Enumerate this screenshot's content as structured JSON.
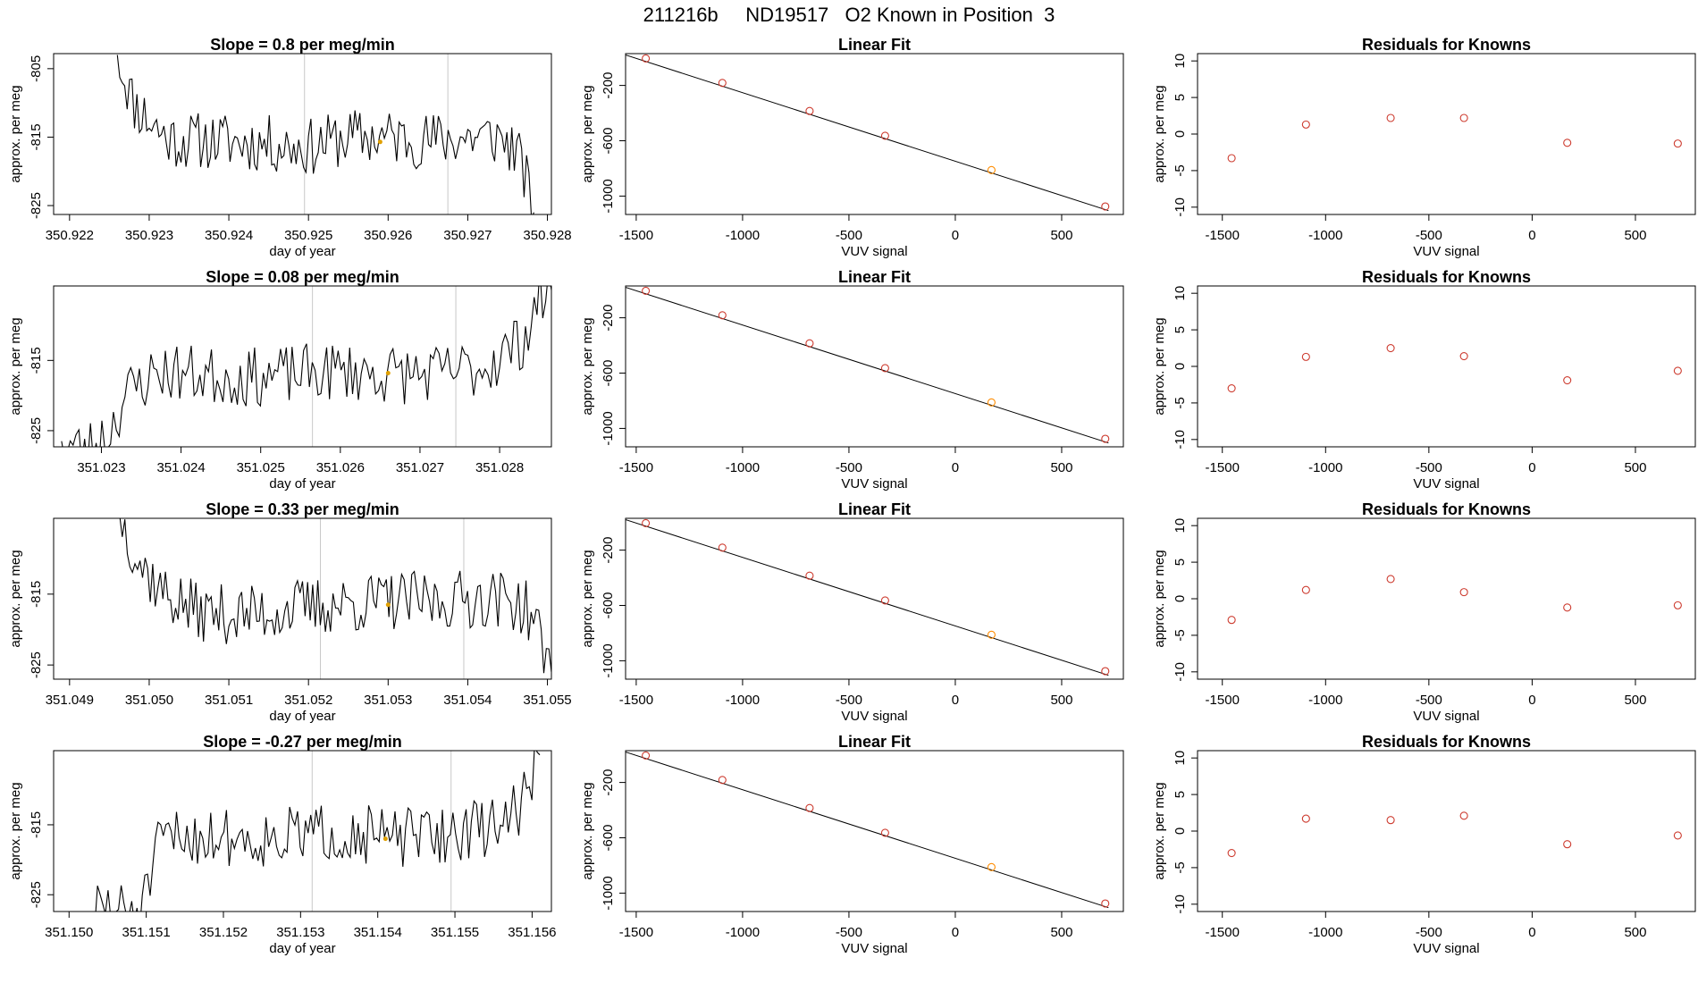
{
  "figure_title": "211216b     ND19517   O2 Known in Position  3",
  "colors": {
    "trace": "#000000",
    "fit_line": "#000000",
    "marker_point": "#ff8c00",
    "known_point": "#cd3b2f",
    "highlight_point": "#e0a000",
    "frame": "#000000",
    "vline": "#c8c8c8"
  },
  "chart_data": [
    {
      "id": "r1-trace",
      "type": "line",
      "title": "Slope =  0.8  per meg/min",
      "xlabel": "day of year",
      "ylabel": "approx. per meg",
      "xlim": [
        350.9218,
        350.92805
      ],
      "ylim": [
        -826.3,
        -802.8
      ],
      "xticks": [
        350.922,
        350.923,
        350.924,
        350.925,
        350.926,
        350.927,
        350.928
      ],
      "xtick_labels": [
        "350.922",
        "350.923",
        "350.924",
        "350.925",
        "350.926",
        "350.927",
        "350.928"
      ],
      "yticks": [
        -805,
        -815,
        -825
      ],
      "ytick_labels": [
        "-805",
        "-815",
        "-825"
      ],
      "vlines": [
        350.92495,
        350.92675
      ],
      "highlight": [
        350.9259,
        -815.7
      ],
      "seed": 11,
      "x": [
        350.9226,
        350.9228,
        350.923,
        350.9232,
        350.9234,
        350.9238,
        350.9245,
        350.925,
        350.9255,
        350.926,
        350.9265,
        350.927,
        350.9274,
        350.9276,
        350.9277,
        350.92783
      ],
      "y": [
        -803,
        -810,
        -812.5,
        -815,
        -815.5,
        -815.5,
        -816,
        -816.5,
        -815,
        -815,
        -815.5,
        -815,
        -815,
        -817,
        -820,
        -826
      ]
    },
    {
      "id": "r1-fit",
      "type": "scatter",
      "title": "Linear Fit",
      "xlabel": "VUV signal",
      "ylabel": "approx. per meg",
      "xlim": [
        -1550,
        790
      ],
      "ylim": [
        -1133,
        30
      ],
      "xticks": [
        -1500,
        -1000,
        -500,
        0,
        500
      ],
      "xtick_labels": [
        "-1500",
        "-1000",
        "-500",
        "0",
        "500"
      ],
      "yticks": [
        -200,
        -600,
        -1000
      ],
      "ytick_labels": [
        "-200",
        "-600",
        "-1000"
      ],
      "fit_line": [
        [
          -1590,
          40
        ],
        [
          720,
          -1105
        ]
      ],
      "x": [
        -1455,
        -1095,
        -685,
        -330,
        170,
        705
      ],
      "y": [
        -5,
        -182,
        -385,
        -564,
        -812,
        -1075
      ],
      "point_roles": [
        "known",
        "known",
        "known",
        "known",
        "marker",
        "known"
      ]
    },
    {
      "id": "r1-resid",
      "type": "scatter",
      "title": "Residuals for Knowns",
      "xlabel": "VUV signal",
      "ylabel": "approx. per meg",
      "xlim": [
        -1620,
        790
      ],
      "ylim": [
        -11,
        11
      ],
      "xticks": [
        -1500,
        -1000,
        -500,
        0,
        500
      ],
      "xtick_labels": [
        "-1500",
        "-1000",
        "-500",
        "0",
        "500"
      ],
      "yticks": [
        10,
        5,
        0,
        -5,
        -10
      ],
      "ytick_labels": [
        "10",
        "5",
        "0",
        "-5",
        "-10"
      ],
      "x": [
        -1455,
        -1095,
        -685,
        -330,
        170,
        705
      ],
      "y": [
        -3.3,
        1.3,
        2.2,
        2.2,
        -1.2,
        -1.3
      ]
    },
    {
      "id": "r2-trace",
      "type": "line",
      "title": "Slope =  0.08  per meg/min",
      "xlabel": "day of year",
      "ylabel": "approx. per meg",
      "xlim": [
        351.0224,
        351.02865
      ],
      "ylim": [
        -827.3,
        -804.4
      ],
      "xticks": [
        351.023,
        351.024,
        351.025,
        351.026,
        351.027,
        351.028
      ],
      "xtick_labels": [
        "351.023",
        "351.024",
        "351.025",
        "351.026",
        "351.027",
        "351.028"
      ],
      "yticks": [
        -815,
        -825
      ],
      "ytick_labels": [
        "-815",
        "-825"
      ],
      "vlines": [
        351.02565,
        351.02745
      ],
      "highlight": [
        351.0266,
        -816.8
      ],
      "seed": 23,
      "x": [
        351.0225,
        351.0228,
        351.0231,
        351.0233,
        351.0237,
        351.0242,
        351.0248,
        351.0254,
        351.026,
        351.0266,
        351.0272,
        351.0278,
        351.0283,
        351.0285,
        351.02865
      ],
      "y": [
        -826.5,
        -828,
        -825,
        -820,
        -816.5,
        -817,
        -817.5,
        -817,
        -816.5,
        -817,
        -817,
        -816,
        -812,
        -806,
        -805
      ]
    },
    {
      "id": "r2-fit",
      "type": "scatter",
      "title": "Linear Fit",
      "xlabel": "VUV signal",
      "ylabel": "approx. per meg",
      "xlim": [
        -1550,
        790
      ],
      "ylim": [
        -1133,
        30
      ],
      "xticks": [
        -1500,
        -1000,
        -500,
        0,
        500
      ],
      "xtick_labels": [
        "-1500",
        "-1000",
        "-500",
        "0",
        "500"
      ],
      "yticks": [
        -200,
        -600,
        -1000
      ],
      "ytick_labels": [
        "-200",
        "-600",
        "-1000"
      ],
      "fit_line": [
        [
          -1590,
          40
        ],
        [
          720,
          -1105
        ]
      ],
      "x": [
        -1455,
        -1095,
        -685,
        -330,
        170,
        705
      ],
      "y": [
        -5,
        -182,
        -385,
        -564,
        -812,
        -1075
      ],
      "point_roles": [
        "known",
        "known",
        "known",
        "known",
        "marker",
        "known"
      ]
    },
    {
      "id": "r2-resid",
      "type": "scatter",
      "title": "Residuals for Knowns",
      "xlabel": "VUV signal",
      "ylabel": "approx. per meg",
      "xlim": [
        -1620,
        790
      ],
      "ylim": [
        -11,
        11
      ],
      "xticks": [
        -1500,
        -1000,
        -500,
        0,
        500
      ],
      "xtick_labels": [
        "-1500",
        "-1000",
        "-500",
        "0",
        "500"
      ],
      "yticks": [
        10,
        5,
        0,
        -5,
        -10
      ],
      "ytick_labels": [
        "10",
        "5",
        "0",
        "-5",
        "-10"
      ],
      "x": [
        -1455,
        -1095,
        -685,
        -330,
        170,
        705
      ],
      "y": [
        -3.0,
        1.3,
        2.5,
        1.4,
        -1.9,
        -0.6
      ]
    },
    {
      "id": "r3-trace",
      "type": "line",
      "title": "Slope =  0.33  per meg/min",
      "xlabel": "day of year",
      "ylabel": "approx. per meg",
      "xlim": [
        351.0488,
        351.05505
      ],
      "ylim": [
        -827.0,
        -804.3
      ],
      "xticks": [
        351.049,
        351.05,
        351.051,
        351.052,
        351.053,
        351.054,
        351.055
      ],
      "xtick_labels": [
        "351.049",
        "351.050",
        "351.051",
        "351.052",
        "351.053",
        "351.054",
        "351.055"
      ],
      "yticks": [
        -815,
        -825
      ],
      "ytick_labels": [
        "-815",
        "-825"
      ],
      "vlines": [
        351.05215,
        351.05395
      ],
      "highlight": [
        351.053,
        -816.5
      ],
      "seed": 37,
      "x": [
        351.04963,
        351.04975,
        351.0499,
        351.0502,
        351.0506,
        351.0512,
        351.0518,
        351.0524,
        351.053,
        351.0536,
        351.0542,
        351.0546,
        351.0548,
        351.0549,
        351.05505
      ],
      "y": [
        -804,
        -807,
        -811,
        -815,
        -817.5,
        -818,
        -817,
        -816.5,
        -816,
        -816,
        -815.5,
        -816,
        -818,
        -821,
        -826
      ]
    },
    {
      "id": "r3-fit",
      "type": "scatter",
      "title": "Linear Fit",
      "xlabel": "VUV signal",
      "ylabel": "approx. per meg",
      "xlim": [
        -1550,
        790
      ],
      "ylim": [
        -1133,
        30
      ],
      "xticks": [
        -1500,
        -1000,
        -500,
        0,
        500
      ],
      "xtick_labels": [
        "-1500",
        "-1000",
        "-500",
        "0",
        "500"
      ],
      "yticks": [
        -200,
        -600,
        -1000
      ],
      "ytick_labels": [
        "-200",
        "-600",
        "-1000"
      ],
      "fit_line": [
        [
          -1590,
          40
        ],
        [
          720,
          -1105
        ]
      ],
      "x": [
        -1455,
        -1095,
        -685,
        -330,
        170,
        705
      ],
      "y": [
        -5,
        -182,
        -385,
        -564,
        -812,
        -1075
      ],
      "point_roles": [
        "known",
        "known",
        "known",
        "known",
        "marker",
        "known"
      ]
    },
    {
      "id": "r3-resid",
      "type": "scatter",
      "title": "Residuals for Knowns",
      "xlabel": "VUV signal",
      "ylabel": "approx. per meg",
      "xlim": [
        -1620,
        790
      ],
      "ylim": [
        -11,
        11
      ],
      "xticks": [
        -1500,
        -1000,
        -500,
        0,
        500
      ],
      "xtick_labels": [
        "-1500",
        "-1000",
        "-500",
        "0",
        "500"
      ],
      "yticks": [
        10,
        5,
        0,
        -5,
        -10
      ],
      "ytick_labels": [
        "10",
        "5",
        "0",
        "-5",
        "-10"
      ],
      "x": [
        -1455,
        -1095,
        -685,
        -330,
        170,
        705
      ],
      "y": [
        -2.9,
        1.2,
        2.7,
        0.9,
        -1.2,
        -0.9
      ]
    },
    {
      "id": "r4-trace",
      "type": "line",
      "title": "Slope =  -0.27  per meg/min",
      "xlabel": "day of year",
      "ylabel": "approx. per meg",
      "xlim": [
        351.1498,
        351.15625
      ],
      "ylim": [
        -827.4,
        -804.4
      ],
      "xticks": [
        351.15,
        351.151,
        351.152,
        351.153,
        351.154,
        351.155,
        351.156
      ],
      "xtick_labels": [
        "351.150",
        "351.151",
        "351.152",
        "351.153",
        "351.154",
        "351.155",
        "351.156"
      ],
      "yticks": [
        -815,
        -825
      ],
      "ytick_labels": [
        "-815",
        "-825"
      ],
      "vlines": [
        351.15315,
        351.15495
      ],
      "highlight": [
        351.1541,
        -817.0
      ],
      "seed": 51,
      "x": [
        351.1503,
        351.1505,
        351.1507,
        351.1509,
        351.151,
        351.1512,
        351.1518,
        351.1524,
        351.153,
        351.1536,
        351.1542,
        351.1548,
        351.1554,
        351.1558,
        351.156,
        351.1561
      ],
      "y": [
        -827.5,
        -826.5,
        -827.5,
        -827,
        -825,
        -817,
        -816.5,
        -817,
        -816.5,
        -816,
        -817,
        -816.5,
        -815.5,
        -813,
        -808,
        -805
      ]
    },
    {
      "id": "r4-fit",
      "type": "scatter",
      "title": "Linear Fit",
      "xlabel": "VUV signal",
      "ylabel": "approx. per meg",
      "xlim": [
        -1550,
        790
      ],
      "ylim": [
        -1133,
        30
      ],
      "xticks": [
        -1500,
        -1000,
        -500,
        0,
        500
      ],
      "xtick_labels": [
        "-1500",
        "-1000",
        "-500",
        "0",
        "500"
      ],
      "yticks": [
        -200,
        -600,
        -1000
      ],
      "ytick_labels": [
        "-200",
        "-600",
        "-1000"
      ],
      "fit_line": [
        [
          -1590,
          40
        ],
        [
          720,
          -1105
        ]
      ],
      "x": [
        -1455,
        -1095,
        -685,
        -330,
        170,
        705
      ],
      "y": [
        -5,
        -182,
        -385,
        -564,
        -812,
        -1075
      ],
      "point_roles": [
        "known",
        "known",
        "known",
        "known",
        "marker",
        "known"
      ]
    },
    {
      "id": "r4-resid",
      "type": "scatter",
      "title": "Residuals for Knowns",
      "xlabel": "VUV signal",
      "ylabel": "approx. per meg",
      "xlim": [
        -1620,
        790
      ],
      "ylim": [
        -11,
        11
      ],
      "xticks": [
        -1500,
        -1000,
        -500,
        0,
        500
      ],
      "xtick_labels": [
        "-1500",
        "-1000",
        "-500",
        "0",
        "500"
      ],
      "yticks": [
        10,
        5,
        0,
        -5,
        -10
      ],
      "ytick_labels": [
        "10",
        "5",
        "0",
        "-5",
        "-10"
      ],
      "x": [
        -1455,
        -1095,
        -685,
        -330,
        170,
        705
      ],
      "y": [
        -3.0,
        1.7,
        1.5,
        2.1,
        -1.8,
        -0.6
      ]
    }
  ]
}
